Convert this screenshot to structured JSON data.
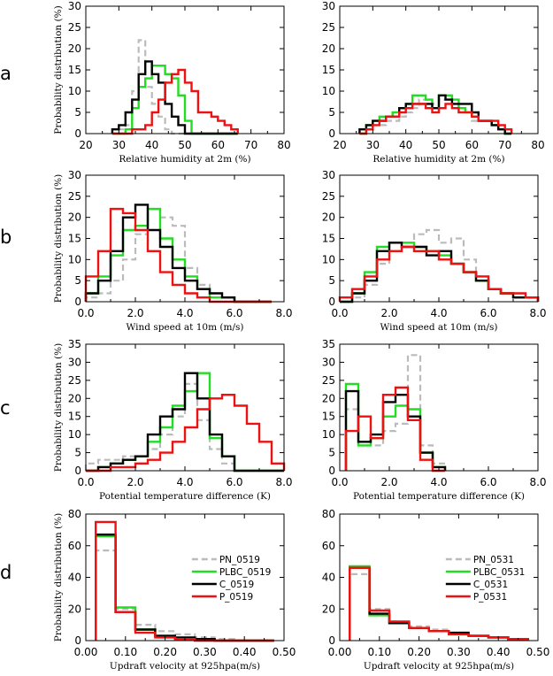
{
  "colors": {
    "PN": "#bbbbbb",
    "PLBC": "#22dd22",
    "C": "#000000",
    "P": "#ee1111"
  },
  "row_letters": [
    "a",
    "b",
    "c",
    "d"
  ],
  "chart_data": [
    {
      "type": "line",
      "step": true,
      "row": 0,
      "col": 0,
      "xlabel": "Relative humidity at 2m (%)",
      "ylabel": "Probability distribution (%)",
      "xlim": [
        20,
        80
      ],
      "ylim": [
        0,
        30
      ],
      "xticks": [
        20,
        30,
        40,
        50,
        60,
        70,
        80
      ],
      "xtick_labels": [
        "20",
        "30",
        "40",
        "50",
        "60",
        "70",
        "80"
      ],
      "yticks": [
        0,
        5,
        10,
        15,
        20,
        25,
        30
      ],
      "ytick_labels": [
        "0",
        "5",
        "10",
        "15",
        "20",
        "25",
        "30"
      ],
      "bin_edges": [
        28,
        30,
        32,
        34,
        36,
        38,
        40,
        42,
        44,
        46,
        48,
        50,
        52,
        54,
        56,
        58,
        60,
        62,
        64,
        66
      ],
      "series": [
        {
          "key": "PN",
          "dashed": true,
          "values": [
            0,
            1,
            2,
            10,
            22,
            11,
            7,
            4,
            1,
            0,
            0,
            0,
            0,
            0,
            0,
            0,
            0,
            0,
            0
          ]
        },
        {
          "key": "PLBC",
          "dashed": false,
          "values": [
            0,
            0,
            1,
            6,
            11,
            13,
            16,
            16,
            14,
            13,
            9,
            3,
            0,
            0,
            0,
            0,
            0,
            0,
            0
          ]
        },
        {
          "key": "C",
          "dashed": false,
          "values": [
            1,
            2,
            5,
            8,
            14,
            17,
            14,
            12,
            7,
            4,
            2,
            0,
            0,
            0,
            0,
            0,
            0,
            0,
            0
          ]
        },
        {
          "key": "P",
          "dashed": false,
          "values": [
            0,
            0,
            0,
            1,
            1,
            2,
            5,
            8,
            12,
            14,
            15,
            12,
            10,
            5,
            5,
            4,
            3,
            2,
            1
          ]
        }
      ]
    },
    {
      "type": "line",
      "step": true,
      "row": 0,
      "col": 1,
      "xlabel": "Relative humidity at 2m (%)",
      "ylabel": "",
      "xlim": [
        20,
        80
      ],
      "ylim": [
        0,
        30
      ],
      "xticks": [
        20,
        30,
        40,
        50,
        60,
        70,
        80
      ],
      "xtick_labels": [
        "20",
        "30",
        "40",
        "50",
        "60",
        "70",
        "80"
      ],
      "yticks": [
        0,
        5,
        10,
        15,
        20,
        25,
        30
      ],
      "ytick_labels": [
        "0",
        "5",
        "10",
        "15",
        "20",
        "25",
        "30"
      ],
      "bin_edges": [
        26,
        28,
        30,
        32,
        34,
        36,
        38,
        40,
        42,
        44,
        46,
        48,
        50,
        52,
        54,
        56,
        58,
        60,
        62,
        64,
        66,
        68,
        70,
        72
      ],
      "series": [
        {
          "key": "PN",
          "dashed": true,
          "values": [
            0,
            1,
            2,
            2,
            3,
            3,
            4,
            5,
            6,
            8,
            8,
            7,
            8,
            8,
            7,
            6,
            5,
            3,
            3,
            3,
            2,
            1,
            0
          ]
        },
        {
          "key": "PLBC",
          "dashed": false,
          "values": [
            0,
            2,
            3,
            4,
            4,
            5,
            6,
            7,
            9,
            9,
            8,
            6,
            9,
            9,
            8,
            6,
            5,
            4,
            3,
            3,
            2,
            1,
            0
          ]
        },
        {
          "key": "C",
          "dashed": false,
          "values": [
            1,
            2,
            3,
            3,
            4,
            4,
            6,
            7,
            7,
            7,
            7,
            6,
            9,
            8,
            7,
            7,
            7,
            5,
            3,
            3,
            2,
            1,
            0
          ]
        },
        {
          "key": "P",
          "dashed": false,
          "values": [
            0,
            1,
            2,
            3,
            4,
            4,
            5,
            6,
            7,
            7,
            6,
            5,
            6,
            7,
            6,
            5,
            5,
            4,
            3,
            3,
            3,
            2,
            1
          ]
        }
      ]
    },
    {
      "type": "line",
      "step": true,
      "row": 1,
      "col": 0,
      "xlabel": "Wind speed at 10m (m/s)",
      "ylabel": "Probability distribution (%)",
      "xlim": [
        0,
        8
      ],
      "ylim": [
        0,
        30
      ],
      "xticks": [
        0,
        2,
        4,
        6,
        8
      ],
      "xtick_labels": [
        "0.0",
        "2.0",
        "4.0",
        "6.0",
        "8.0"
      ],
      "yticks": [
        0,
        5,
        10,
        15,
        20,
        25,
        30
      ],
      "ytick_labels": [
        "0",
        "5",
        "10",
        "15",
        "20",
        "25",
        "30"
      ],
      "bin_edges": [
        0,
        0.5,
        1.0,
        1.5,
        2.0,
        2.5,
        3.0,
        3.5,
        4.0,
        4.5,
        5.0,
        5.5,
        6.0,
        6.5,
        7.0,
        7.5
      ],
      "series": [
        {
          "key": "PN",
          "dashed": true,
          "values": [
            1,
            2,
            5,
            10,
            16,
            22,
            20,
            18,
            8,
            4,
            2,
            1,
            0,
            0,
            0
          ]
        },
        {
          "key": "PLBC",
          "dashed": false,
          "values": [
            2,
            6,
            11,
            17,
            18,
            22,
            15,
            10,
            6,
            3,
            1,
            1,
            0,
            0,
            0
          ]
        },
        {
          "key": "C",
          "dashed": false,
          "values": [
            2,
            5,
            12,
            20,
            23,
            17,
            13,
            8,
            5,
            3,
            2,
            1,
            0,
            0,
            0
          ]
        },
        {
          "key": "P",
          "dashed": false,
          "values": [
            6,
            12,
            22,
            21,
            17,
            12,
            7,
            4,
            2,
            1,
            0,
            0,
            0,
            0,
            0
          ]
        }
      ]
    },
    {
      "type": "line",
      "step": true,
      "row": 1,
      "col": 1,
      "xlabel": "Wind speed at 10m (m/s)",
      "ylabel": "",
      "xlim": [
        0,
        8
      ],
      "ylim": [
        0,
        30
      ],
      "xticks": [
        0,
        2,
        4,
        6,
        8
      ],
      "xtick_labels": [
        "0.0",
        "2.0",
        "4.0",
        "6.0",
        "8.0"
      ],
      "yticks": [
        0,
        5,
        10,
        15,
        20,
        25,
        30
      ],
      "ytick_labels": [
        "0",
        "5",
        "10",
        "15",
        "20",
        "25",
        "30"
      ],
      "bin_edges": [
        0,
        0.5,
        1.0,
        1.5,
        2.0,
        2.5,
        3.0,
        3.5,
        4.0,
        4.5,
        5.0,
        5.5,
        6.0,
        6.5,
        7.0,
        7.5,
        8.0
      ],
      "series": [
        {
          "key": "PN",
          "dashed": true,
          "values": [
            0,
            1,
            4,
            9,
            12,
            14,
            16,
            17,
            14,
            15,
            10,
            6,
            3,
            2,
            2,
            1
          ]
        },
        {
          "key": "PLBC",
          "dashed": false,
          "values": [
            0,
            2,
            7,
            13,
            14,
            14,
            13,
            12,
            11,
            9,
            7,
            5,
            3,
            2,
            1,
            1
          ]
        },
        {
          "key": "C",
          "dashed": false,
          "values": [
            0,
            2,
            5,
            12,
            14,
            13,
            13,
            11,
            12,
            9,
            7,
            5,
            3,
            2,
            1,
            1
          ]
        },
        {
          "key": "P",
          "dashed": false,
          "values": [
            1,
            3,
            6,
            10,
            12,
            13,
            12,
            12,
            10,
            9,
            7,
            6,
            3,
            2,
            2,
            1
          ]
        }
      ]
    },
    {
      "type": "line",
      "step": true,
      "row": 2,
      "col": 0,
      "xlabel": "Potential temperature difference (K)",
      "ylabel": "Probability distribution (%)",
      "xlim": [
        0,
        8
      ],
      "ylim": [
        0,
        35
      ],
      "xticks": [
        0,
        2,
        4,
        6,
        8
      ],
      "xtick_labels": [
        "0.0",
        "2.0",
        "4.0",
        "6.0",
        "8.0"
      ],
      "yticks": [
        0,
        5,
        10,
        15,
        20,
        25,
        30,
        35
      ],
      "ytick_labels": [
        "0",
        "5",
        "10",
        "15",
        "20",
        "25",
        "30",
        "35"
      ],
      "bin_edges": [
        0,
        0.5,
        1.0,
        1.5,
        2.0,
        2.5,
        3.0,
        3.5,
        4.0,
        4.5,
        5.0,
        5.5,
        6.0,
        6.5,
        7.0,
        7.5,
        8.0
      ],
      "series": [
        {
          "key": "PN",
          "dashed": true,
          "values": [
            2,
            3,
            3,
            4,
            4,
            6,
            10,
            15,
            24,
            14,
            6,
            2,
            0,
            0,
            0,
            0
          ]
        },
        {
          "key": "PLBC",
          "dashed": false,
          "values": [
            0,
            1,
            2,
            3,
            4,
            8,
            12,
            18,
            22,
            27,
            9,
            4,
            0,
            0,
            0,
            0
          ]
        },
        {
          "key": "C",
          "dashed": false,
          "values": [
            0,
            1,
            2,
            3,
            4,
            10,
            15,
            17,
            27,
            20,
            10,
            4,
            0,
            0,
            0,
            0
          ]
        },
        {
          "key": "P",
          "dashed": false,
          "values": [
            0,
            0,
            1,
            1,
            2,
            3,
            5,
            8,
            12,
            17,
            20,
            21,
            18,
            13,
            8,
            2
          ]
        }
      ]
    },
    {
      "type": "line",
      "step": true,
      "row": 2,
      "col": 1,
      "xlabel": "Potential temperature difference (K)",
      "ylabel": "",
      "xlim": [
        0,
        8
      ],
      "ylim": [
        0,
        35
      ],
      "xticks": [
        0,
        2,
        4,
        6,
        8
      ],
      "xtick_labels": [
        "0.0",
        "2.0",
        "4.0",
        "6.0",
        "8.0"
      ],
      "yticks": [
        0,
        5,
        10,
        15,
        20,
        25,
        30,
        35
      ],
      "ytick_labels": [
        "0",
        "5",
        "10",
        "15",
        "20",
        "25",
        "30",
        "35"
      ],
      "bin_edges": [
        0.25,
        0.75,
        1.25,
        1.75,
        2.25,
        2.75,
        3.25,
        3.75,
        4.25
      ],
      "series": [
        {
          "key": "PN",
          "dashed": true,
          "values": [
            17,
            7,
            7,
            11,
            13,
            32,
            7,
            2
          ]
        },
        {
          "key": "PLBC",
          "dashed": false,
          "values": [
            24,
            7,
            9,
            15,
            18,
            17,
            5,
            1
          ]
        },
        {
          "key": "C",
          "dashed": false,
          "values": [
            22,
            8,
            10,
            19,
            21,
            15,
            5,
            1
          ]
        },
        {
          "key": "P",
          "dashed": false,
          "values": [
            11,
            15,
            9,
            21,
            23,
            14,
            3,
            0
          ]
        }
      ]
    },
    {
      "type": "line",
      "step": true,
      "row": 3,
      "col": 0,
      "xlabel": "Updraft velocity at 925hpa(m/s)",
      "ylabel": "Probability distribution (%)",
      "xlim": [
        0,
        0.5
      ],
      "ylim": [
        0,
        80
      ],
      "xticks": [
        0,
        0.1,
        0.2,
        0.3,
        0.4,
        0.5
      ],
      "xtick_labels": [
        "0.00",
        "0.10",
        "0.20",
        "0.30",
        "0.40",
        "0.50"
      ],
      "yticks": [
        0,
        20,
        40,
        60,
        80
      ],
      "ytick_labels": [
        "0",
        "20",
        "40",
        "60",
        "80"
      ],
      "bin_edges": [
        0.025,
        0.075,
        0.125,
        0.175,
        0.225,
        0.275,
        0.325,
        0.375,
        0.425,
        0.475
      ],
      "series": [
        {
          "key": "PN",
          "dashed": true,
          "values": [
            57,
            20,
            10,
            6,
            4,
            2,
            1,
            0,
            0
          ]
        },
        {
          "key": "PLBC",
          "dashed": false,
          "values": [
            66,
            21,
            7,
            3,
            1,
            1,
            0,
            0,
            0
          ]
        },
        {
          "key": "C",
          "dashed": false,
          "values": [
            67,
            18,
            7,
            3,
            2,
            1,
            0,
            0,
            0
          ]
        },
        {
          "key": "P",
          "dashed": false,
          "values": [
            75,
            18,
            5,
            2,
            1,
            0,
            0,
            0,
            0
          ]
        }
      ],
      "legend": {
        "position": "right",
        "labels": [
          "PN_0519",
          "PLBC_0519",
          "C_0519",
          "P_0519"
        ]
      }
    },
    {
      "type": "line",
      "step": true,
      "row": 3,
      "col": 1,
      "xlabel": "Updraft velocity at 925hpa(m/s)",
      "ylabel": "",
      "xlim": [
        0,
        0.5
      ],
      "ylim": [
        0,
        80
      ],
      "xticks": [
        0,
        0.1,
        0.2,
        0.3,
        0.4,
        0.5
      ],
      "xtick_labels": [
        "0.00",
        "0.10",
        "0.20",
        "0.30",
        "0.40",
        "0.50"
      ],
      "yticks": [
        0,
        20,
        40,
        60,
        80
      ],
      "ytick_labels": [
        "0",
        "20",
        "40",
        "60",
        "80"
      ],
      "bin_edges": [
        0.025,
        0.075,
        0.125,
        0.175,
        0.225,
        0.275,
        0.325,
        0.375,
        0.425,
        0.475
      ],
      "series": [
        {
          "key": "PN",
          "dashed": true,
          "values": [
            42,
            20,
            12,
            9,
            7,
            5,
            3,
            2,
            1
          ]
        },
        {
          "key": "PLBC",
          "dashed": false,
          "values": [
            47,
            16,
            11,
            8,
            6,
            4,
            3,
            2,
            1
          ]
        },
        {
          "key": "C",
          "dashed": false,
          "values": [
            46,
            17,
            11,
            8,
            6,
            5,
            3,
            2,
            1
          ]
        },
        {
          "key": "P",
          "dashed": false,
          "values": [
            46,
            19,
            12,
            8,
            6,
            4,
            3,
            2,
            1
          ]
        }
      ],
      "legend": {
        "position": "right",
        "labels": [
          "PN_0531",
          "PLBC_0531",
          "C_0531",
          "P_0531"
        ]
      }
    }
  ]
}
